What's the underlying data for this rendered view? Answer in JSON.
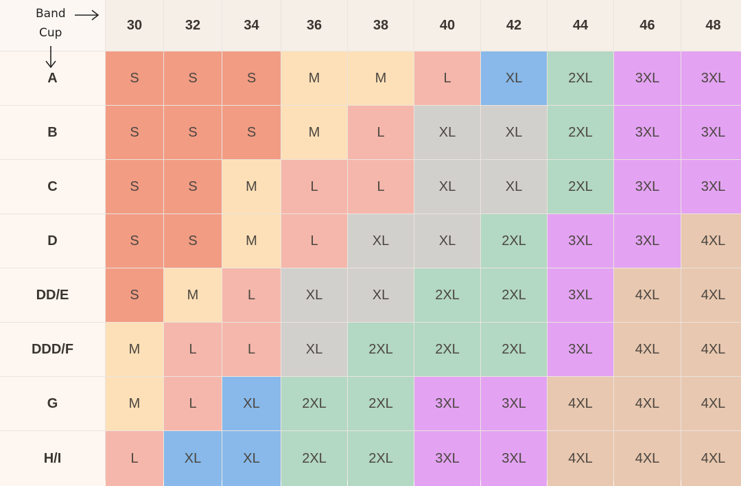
{
  "corner": {
    "band_label": "Band",
    "cup_label": "Cup"
  },
  "bands": [
    "30",
    "32",
    "34",
    "36",
    "38",
    "40",
    "42",
    "44",
    "46",
    "48"
  ],
  "cups": [
    "A",
    "B",
    "C",
    "D",
    "DD/E",
    "DDD/F",
    "G",
    "H/I"
  ],
  "sizes": [
    [
      "S",
      "S",
      "S",
      "M",
      "M",
      "L",
      "XL",
      "2XL",
      "3XL",
      "3XL"
    ],
    [
      "S",
      "S",
      "S",
      "M",
      "L",
      "XL",
      "XL",
      "2XL",
      "3XL",
      "3XL"
    ],
    [
      "S",
      "S",
      "M",
      "L",
      "L",
      "XL",
      "XL",
      "2XL",
      "3XL",
      "3XL"
    ],
    [
      "S",
      "S",
      "M",
      "L",
      "XL",
      "XL",
      "2XL",
      "3XL",
      "3XL",
      "4XL"
    ],
    [
      "S",
      "M",
      "L",
      "XL",
      "XL",
      "2XL",
      "2XL",
      "3XL",
      "4XL",
      "4XL"
    ],
    [
      "M",
      "L",
      "L",
      "XL",
      "2XL",
      "2XL",
      "2XL",
      "3XL",
      "4XL",
      "4XL"
    ],
    [
      "M",
      "L",
      "XL",
      "2XL",
      "2XL",
      "3XL",
      "3XL",
      "4XL",
      "4XL",
      "4XL"
    ],
    [
      "L",
      "XL",
      "XL",
      "2XL",
      "2XL",
      "3XL",
      "3XL",
      "4XL",
      "4XL",
      "4XL"
    ]
  ],
  "size_colors": {
    "S": "#f29c84",
    "M": "#fde0b8",
    "L": "#f5b7ab",
    "XL": "#d2d0cd",
    "XL_blue": "#88b9ea",
    "2XL": "#b3d8c3",
    "3XL": "#e3a3f2",
    "4XL": "#e8c8b0"
  },
  "blue_xl_cells": [
    [
      0,
      6
    ],
    [
      6,
      2
    ],
    [
      7,
      1
    ],
    [
      7,
      2
    ]
  ]
}
